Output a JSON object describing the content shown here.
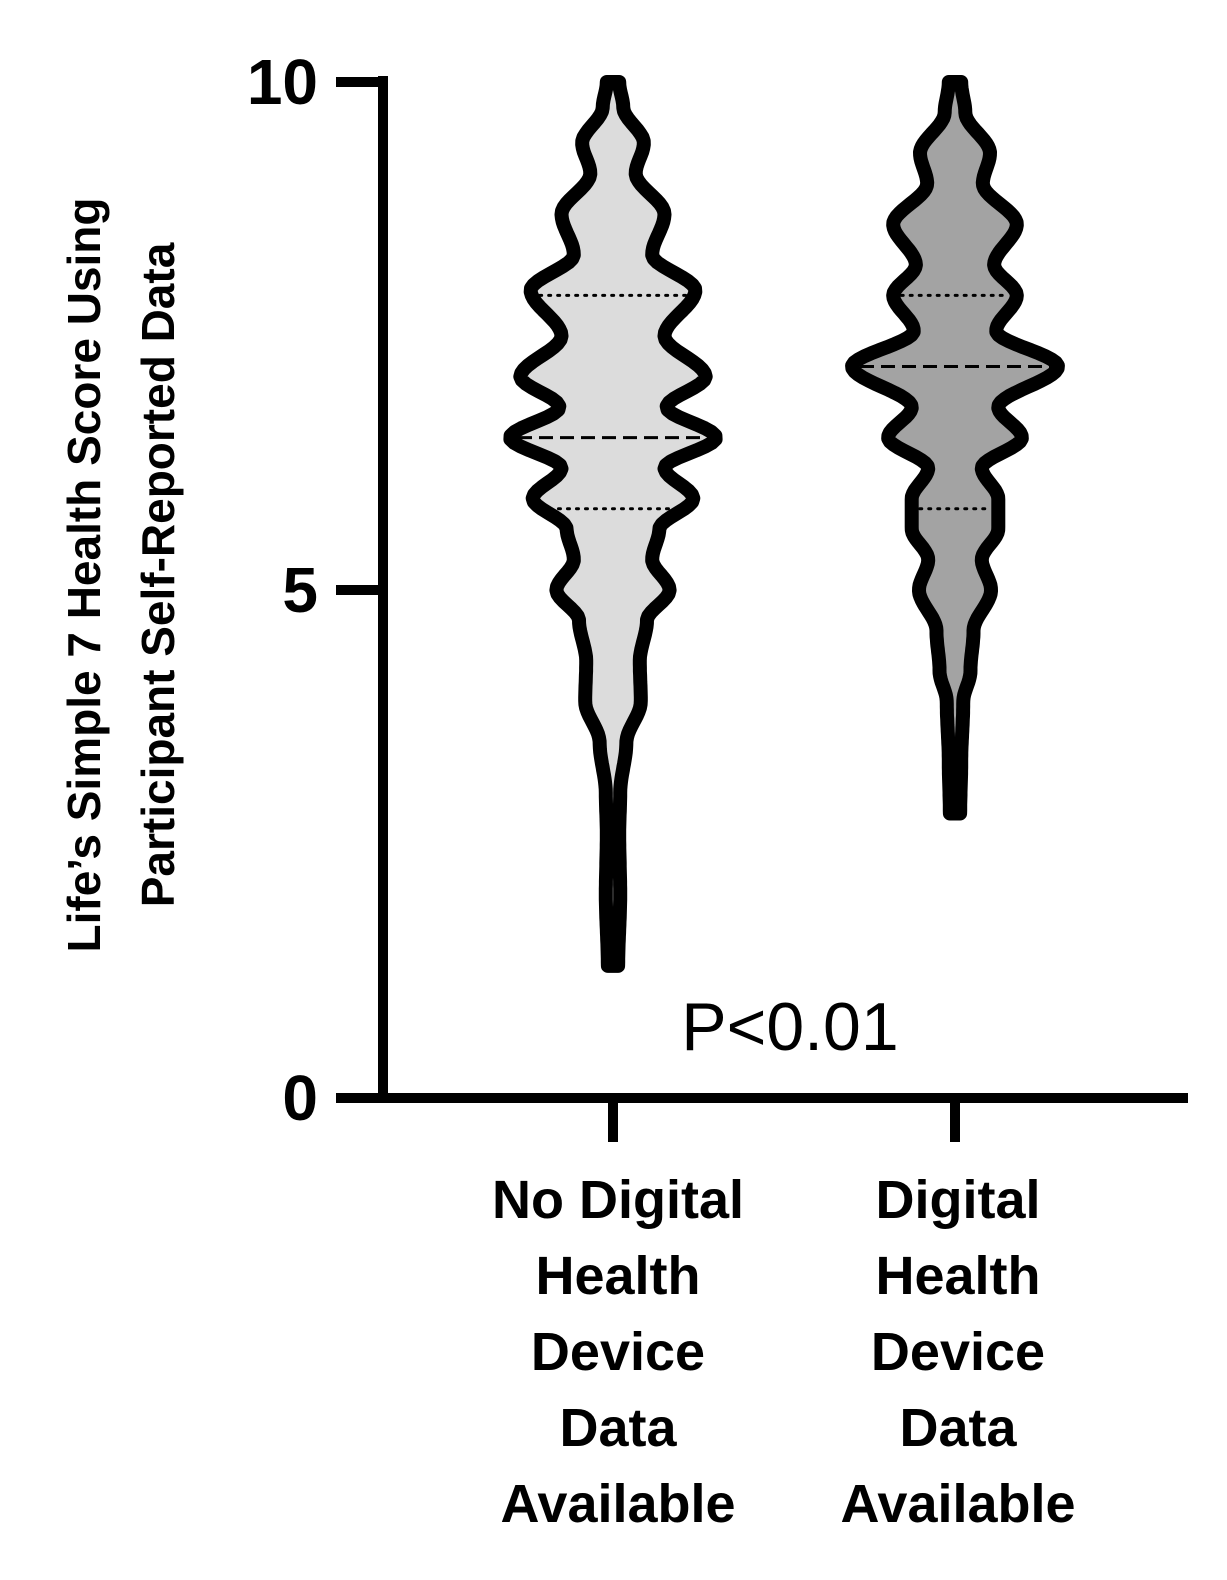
{
  "chart_data": {
    "type": "violin",
    "ylabel_lines": [
      "Life’s Simple 7 Health Score Using",
      "Participant Self-Reported Data"
    ],
    "ylim": [
      0,
      10
    ],
    "yticks": [
      "0",
      "5",
      "10"
    ],
    "annotation": "P<0.01",
    "categories": [
      {
        "label_lines": [
          "No Digital",
          "Health",
          "Device",
          "Data",
          "Available"
        ],
        "color": "#dcdcdc",
        "median": 6.5,
        "q1": 5.8,
        "q3": 7.9,
        "min": 1.3,
        "max": 10,
        "density": [
          [
            1.3,
            0.05
          ],
          [
            2.0,
            0.07
          ],
          [
            2.6,
            0.06
          ],
          [
            3.0,
            0.07
          ],
          [
            3.5,
            0.13
          ],
          [
            3.9,
            0.27
          ],
          [
            4.3,
            0.26
          ],
          [
            4.7,
            0.33
          ],
          [
            5.0,
            0.55
          ],
          [
            5.3,
            0.38
          ],
          [
            5.6,
            0.45
          ],
          [
            5.9,
            0.78
          ],
          [
            6.2,
            0.5
          ],
          [
            6.5,
            1.0
          ],
          [
            6.8,
            0.52
          ],
          [
            7.1,
            0.9
          ],
          [
            7.5,
            0.5
          ],
          [
            7.95,
            0.8
          ],
          [
            8.3,
            0.38
          ],
          [
            8.7,
            0.5
          ],
          [
            9.1,
            0.22
          ],
          [
            9.4,
            0.3
          ],
          [
            9.75,
            0.1
          ],
          [
            10.0,
            0.06
          ]
        ]
      },
      {
        "label_lines": [
          "Digital",
          "Health",
          "Device",
          "Data",
          "Available"
        ],
        "color": "#a3a3a3",
        "median": 7.2,
        "q1": 5.8,
        "q3": 7.9,
        "min": 2.8,
        "max": 10,
        "density": [
          [
            2.8,
            0.05
          ],
          [
            3.3,
            0.06
          ],
          [
            3.9,
            0.08
          ],
          [
            4.2,
            0.15
          ],
          [
            4.6,
            0.18
          ],
          [
            5.0,
            0.35
          ],
          [
            5.3,
            0.26
          ],
          [
            5.6,
            0.42
          ],
          [
            5.9,
            0.42
          ],
          [
            6.2,
            0.26
          ],
          [
            6.5,
            0.65
          ],
          [
            6.8,
            0.42
          ],
          [
            7.2,
            1.0
          ],
          [
            7.55,
            0.4
          ],
          [
            7.9,
            0.6
          ],
          [
            8.2,
            0.38
          ],
          [
            8.6,
            0.6
          ],
          [
            9.0,
            0.27
          ],
          [
            9.3,
            0.34
          ],
          [
            9.7,
            0.1
          ],
          [
            10.0,
            0.06
          ]
        ]
      }
    ]
  }
}
